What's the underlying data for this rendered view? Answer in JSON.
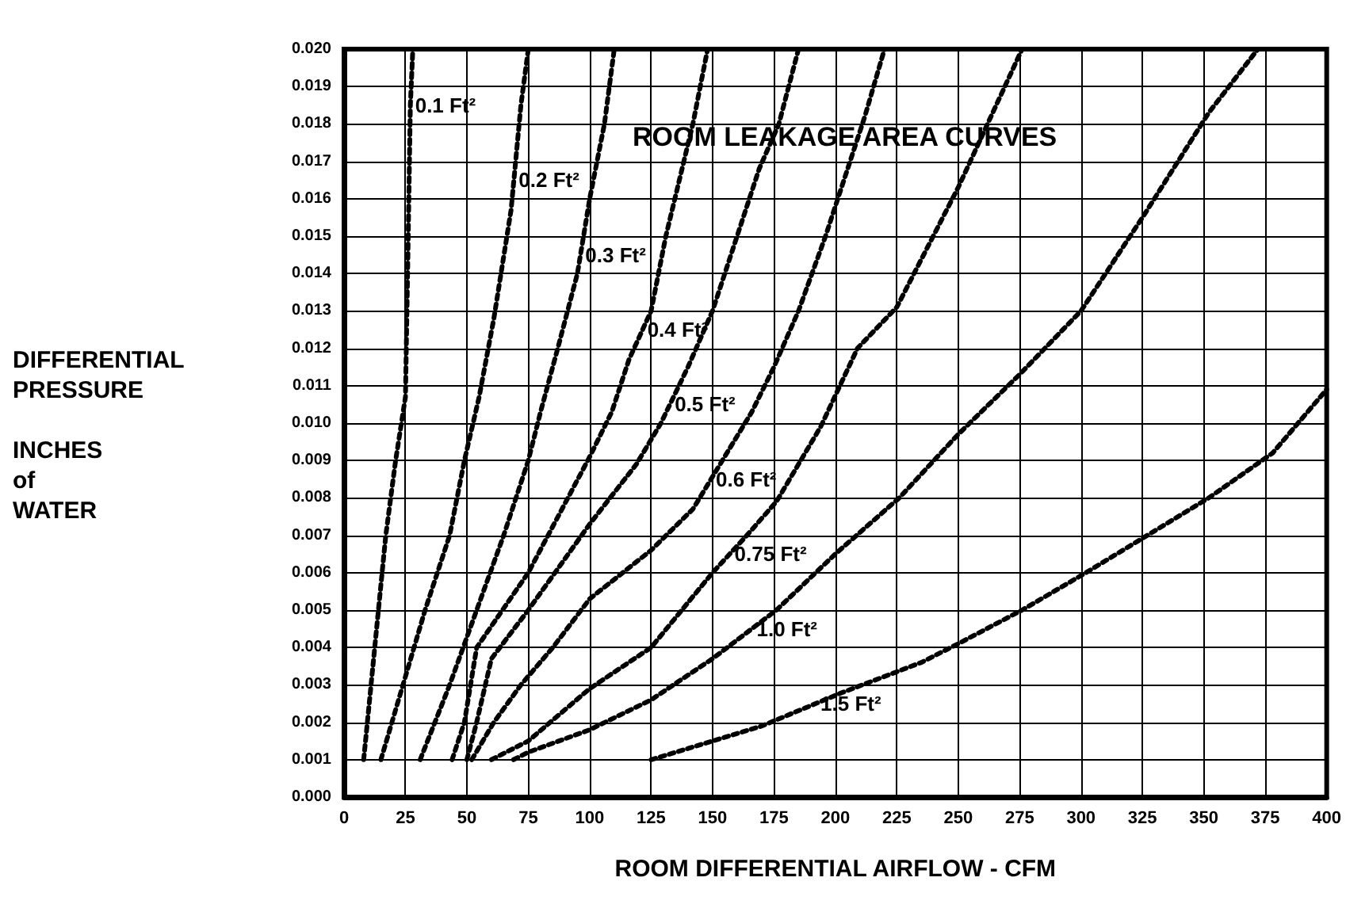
{
  "chart_data": {
    "type": "line",
    "title": "ROOM LEAKAGE AREA CURVES",
    "xlabel": "ROOM DIFFERENTIAL AIRFLOW - CFM",
    "ylabel": "DIFFERENTIAL\nPRESSURE\n\nINCHES\nof\nWATER",
    "xlim": [
      0,
      400
    ],
    "xticks": [
      0,
      25,
      50,
      75,
      100,
      125,
      150,
      175,
      200,
      225,
      250,
      275,
      300,
      325,
      350,
      375,
      400
    ],
    "ylim": [
      0,
      0.02
    ],
    "yticks": [
      {
        "value": 0,
        "label": "0.000"
      },
      {
        "value": 0.001,
        "label": "0.001"
      },
      {
        "value": 0.002,
        "label": "0.002"
      },
      {
        "value": 0.003,
        "label": "0.003"
      },
      {
        "value": 0.004,
        "label": "0.004"
      },
      {
        "value": 0.005,
        "label": "0.005"
      },
      {
        "value": 0.006,
        "label": "0.006"
      },
      {
        "value": 0.007,
        "label": "0.007"
      },
      {
        "value": 0.008,
        "label": "0.008"
      },
      {
        "value": 0.009,
        "label": "0.009"
      },
      {
        "value": 0.01,
        "label": "0.010"
      },
      {
        "value": 0.011,
        "label": "0.011"
      },
      {
        "value": 0.012,
        "label": "0.012"
      },
      {
        "value": 0.013,
        "label": "0.013"
      },
      {
        "value": 0.014,
        "label": "0.014"
      },
      {
        "value": 0.015,
        "label": "0.015"
      },
      {
        "value": 0.016,
        "label": "0.016"
      },
      {
        "value": 0.017,
        "label": "0.017"
      },
      {
        "value": 0.018,
        "label": "0.018"
      },
      {
        "value": 0.019,
        "label": "0.019"
      },
      {
        "value": 0.02,
        "label": "0.020"
      }
    ],
    "grid": true,
    "legend": false,
    "marker": "none",
    "line_style": "dotted",
    "series": [
      {
        "name": "0.1 Ft²",
        "color": "#000000",
        "x": [
          8,
          11,
          14,
          17,
          21,
          25,
          26,
          27,
          28
        ],
        "values": [
          0.001,
          0.003,
          0.005,
          0.007,
          0.009,
          0.0107,
          0.0145,
          0.0185,
          0.02
        ]
      },
      {
        "name": "0.2 Ft²",
        "color": "#000000",
        "x": [
          15,
          24,
          33,
          43,
          49,
          55,
          61,
          68,
          72,
          75
        ],
        "values": [
          0.001,
          0.003,
          0.005,
          0.007,
          0.009,
          0.0107,
          0.0128,
          0.0157,
          0.0185,
          0.02
        ]
      },
      {
        "name": "0.3 Ft²",
        "color": "#000000",
        "x": [
          31,
          43,
          54,
          65,
          75,
          80,
          87,
          95,
          100,
          106,
          110
        ],
        "values": [
          0.001,
          0.003,
          0.005,
          0.007,
          0.009,
          0.0103,
          0.012,
          0.014,
          0.016,
          0.018,
          0.02
        ]
      },
      {
        "name": "0.4 Ft²",
        "color": "#000000",
        "x": [
          44,
          49,
          54,
          75,
          100,
          109,
          116,
          125,
          131,
          142,
          148
        ],
        "values": [
          0.001,
          0.002,
          0.004,
          0.006,
          0.0091,
          0.0103,
          0.0117,
          0.013,
          0.015,
          0.018,
          0.02
        ]
      },
      {
        "name": "0.5 Ft²",
        "color": "#000000",
        "x": [
          50,
          54,
          60,
          75,
          100,
          119,
          129,
          140,
          150,
          160,
          169,
          177,
          185
        ],
        "values": [
          0.001,
          0.002,
          0.0037,
          0.005,
          0.0073,
          0.0089,
          0.01,
          0.0115,
          0.013,
          0.015,
          0.0168,
          0.018,
          0.02
        ]
      },
      {
        "name": "0.6 Ft²",
        "color": "#000000",
        "x": [
          52,
          61,
          72,
          85,
          100,
          125,
          142,
          166,
          175,
          185,
          196,
          205,
          212,
          220
        ],
        "values": [
          0.001,
          0.002,
          0.003,
          0.004,
          0.0053,
          0.0066,
          0.0077,
          0.0103,
          0.0115,
          0.013,
          0.015,
          0.0168,
          0.0182,
          0.02
        ]
      },
      {
        "name": "0.75 Ft²",
        "color": "#000000",
        "x": [
          60,
          75,
          100,
          125,
          150,
          164,
          176,
          194,
          209,
          225,
          250,
          276
        ],
        "values": [
          0.001,
          0.0015,
          0.0029,
          0.004,
          0.006,
          0.007,
          0.0079,
          0.0099,
          0.012,
          0.0131,
          0.0163,
          0.02
        ]
      },
      {
        "name": "1.0 Ft²",
        "color": "#000000",
        "x": [
          69,
          75,
          100,
          125,
          150,
          176,
          200,
          226,
          250,
          275,
          300,
          326,
          352,
          372
        ],
        "values": [
          0.001,
          0.0012,
          0.0018,
          0.0026,
          0.0037,
          0.005,
          0.0065,
          0.008,
          0.0097,
          0.0113,
          0.013,
          0.0156,
          0.0183,
          0.02
        ]
      },
      {
        "name": "1.5 Ft²",
        "color": "#000000",
        "x": [
          125,
          150,
          170,
          203,
          235,
          250,
          276,
          302,
          327,
          352,
          378,
          400
        ],
        "values": [
          0.001,
          0.0015,
          0.0019,
          0.0028,
          0.0036,
          0.0041,
          0.005,
          0.006,
          0.007,
          0.008,
          0.0092,
          0.0109
        ]
      }
    ]
  }
}
